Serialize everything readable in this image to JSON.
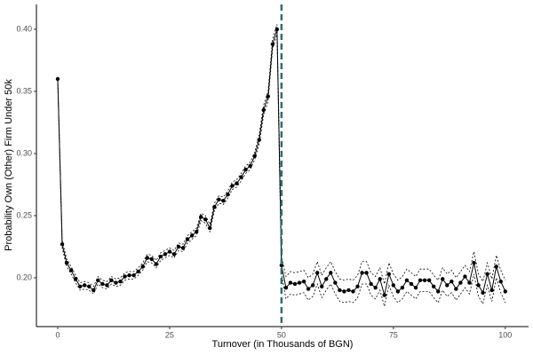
{
  "chart_data": {
    "type": "line",
    "xlabel": "Turnover (in Thousands of BGN)",
    "ylabel": "Probability Own (Other) Firm Under 50k",
    "x": [
      0,
      1,
      2,
      3,
      4,
      5,
      6,
      7,
      8,
      9,
      10,
      11,
      12,
      13,
      14,
      15,
      16,
      17,
      18,
      19,
      20,
      21,
      22,
      23,
      24,
      25,
      26,
      27,
      28,
      29,
      30,
      31,
      32,
      33,
      34,
      35,
      36,
      37,
      38,
      39,
      40,
      41,
      42,
      43,
      44,
      45,
      46,
      47,
      48,
      49,
      50,
      51,
      52,
      53,
      54,
      55,
      56,
      57,
      58,
      59,
      60,
      61,
      62,
      63,
      64,
      65,
      66,
      67,
      68,
      69,
      70,
      71,
      72,
      73,
      74,
      75,
      76,
      77,
      78,
      79,
      80,
      81,
      82,
      83,
      84,
      85,
      86,
      87,
      88,
      89,
      90,
      91,
      92,
      93,
      94,
      95,
      96,
      97,
      98,
      99,
      100
    ],
    "values": [
      0.36,
      0.227,
      0.212,
      0.206,
      0.199,
      0.193,
      0.194,
      0.193,
      0.19,
      0.198,
      0.195,
      0.194,
      0.198,
      0.196,
      0.197,
      0.201,
      0.202,
      0.202,
      0.205,
      0.209,
      0.216,
      0.215,
      0.211,
      0.217,
      0.219,
      0.221,
      0.219,
      0.225,
      0.224,
      0.231,
      0.234,
      0.237,
      0.249,
      0.247,
      0.24,
      0.257,
      0.263,
      0.262,
      0.267,
      0.274,
      0.276,
      0.281,
      0.287,
      0.29,
      0.298,
      0.311,
      0.335,
      0.346,
      0.388,
      0.4,
      0.21,
      0.192,
      0.196,
      0.195,
      0.196,
      0.197,
      0.191,
      0.194,
      0.204,
      0.193,
      0.199,
      0.204,
      0.196,
      0.19,
      0.189,
      0.19,
      0.189,
      0.193,
      0.204,
      0.204,
      0.195,
      0.192,
      0.199,
      0.186,
      0.203,
      0.194,
      0.189,
      0.192,
      0.198,
      0.195,
      0.192,
      0.198,
      0.198,
      0.198,
      0.193,
      0.189,
      0.199,
      0.194,
      0.197,
      0.191,
      0.196,
      0.201,
      0.196,
      0.212,
      0.194,
      0.188,
      0.203,
      0.19,
      0.209,
      0.197,
      0.189
    ],
    "lower": [
      0.359,
      0.224,
      0.209,
      0.203,
      0.196,
      0.19,
      0.191,
      0.19,
      0.187,
      0.195,
      0.192,
      0.191,
      0.195,
      0.193,
      0.194,
      0.198,
      0.199,
      0.199,
      0.202,
      0.206,
      0.213,
      0.212,
      0.208,
      0.214,
      0.216,
      0.218,
      0.216,
      0.222,
      0.221,
      0.228,
      0.231,
      0.234,
      0.246,
      0.244,
      0.237,
      0.254,
      0.26,
      0.259,
      0.264,
      0.271,
      0.273,
      0.278,
      0.284,
      0.287,
      0.295,
      0.307,
      0.331,
      0.342,
      0.384,
      0.396,
      0.203,
      0.183,
      0.187,
      0.186,
      0.187,
      0.188,
      0.182,
      0.185,
      0.195,
      0.184,
      0.19,
      0.195,
      0.187,
      0.181,
      0.18,
      0.181,
      0.18,
      0.184,
      0.195,
      0.195,
      0.186,
      0.183,
      0.19,
      0.177,
      0.194,
      0.185,
      0.18,
      0.183,
      0.189,
      0.186,
      0.183,
      0.189,
      0.189,
      0.189,
      0.184,
      0.18,
      0.19,
      0.185,
      0.188,
      0.182,
      0.187,
      0.192,
      0.187,
      0.203,
      0.185,
      0.179,
      0.194,
      0.181,
      0.2,
      0.188,
      0.18
    ],
    "upper": [
      0.361,
      0.23,
      0.215,
      0.209,
      0.202,
      0.196,
      0.197,
      0.196,
      0.193,
      0.201,
      0.198,
      0.197,
      0.201,
      0.199,
      0.2,
      0.204,
      0.205,
      0.205,
      0.208,
      0.212,
      0.219,
      0.218,
      0.214,
      0.22,
      0.222,
      0.224,
      0.222,
      0.228,
      0.227,
      0.234,
      0.237,
      0.24,
      0.252,
      0.25,
      0.243,
      0.26,
      0.266,
      0.265,
      0.27,
      0.277,
      0.279,
      0.284,
      0.29,
      0.293,
      0.301,
      0.315,
      0.339,
      0.35,
      0.392,
      0.404,
      0.217,
      0.201,
      0.205,
      0.204,
      0.205,
      0.206,
      0.2,
      0.203,
      0.213,
      0.202,
      0.208,
      0.213,
      0.205,
      0.199,
      0.198,
      0.199,
      0.198,
      0.202,
      0.213,
      0.213,
      0.204,
      0.201,
      0.208,
      0.195,
      0.212,
      0.203,
      0.198,
      0.201,
      0.207,
      0.204,
      0.201,
      0.207,
      0.207,
      0.207,
      0.202,
      0.198,
      0.208,
      0.203,
      0.206,
      0.2,
      0.205,
      0.21,
      0.205,
      0.221,
      0.203,
      0.197,
      0.212,
      0.199,
      0.218,
      0.206,
      0.198
    ],
    "color": "#000000",
    "vline": {
      "x": 50,
      "color": "#2e6e70"
    },
    "xlim": [
      -4.76,
      105.2
    ],
    "ylim": [
      0.1607,
      0.42
    ],
    "xticks": [
      0,
      25,
      50,
      75,
      100
    ],
    "yticks": [
      {
        "value": 0.2,
        "label": "0.20"
      },
      0.25,
      {
        "value": 0.3,
        "label": "0.30"
      },
      0.35,
      {
        "value": 0.4,
        "label": "0.40"
      }
    ],
    "grid": false
  }
}
